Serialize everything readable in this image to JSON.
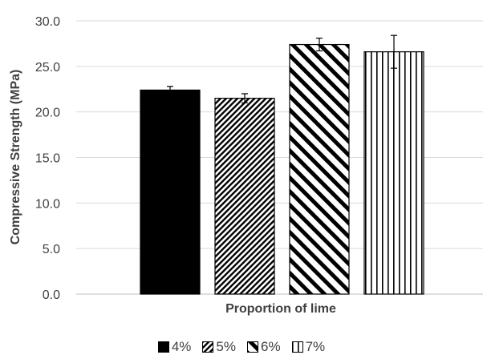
{
  "chart_data": {
    "type": "bar",
    "title": "",
    "xlabel": "Proportion of lime",
    "ylabel": "Compressive Strength (MPa)",
    "ylim": [
      0,
      30
    ],
    "yticks": [
      "0.0",
      "5.0",
      "10.0",
      "15.0",
      "20.0",
      "25.0",
      "30.0"
    ],
    "grid": true,
    "legend_position": "bottom",
    "series": [
      {
        "name": "4%",
        "value": 22.4,
        "error": 0.4,
        "pattern": "solid"
      },
      {
        "name": "5%",
        "value": 21.5,
        "error": 0.5,
        "pattern": "diag-down-dense"
      },
      {
        "name": "6%",
        "value": 27.4,
        "error": 0.7,
        "pattern": "diag-up"
      },
      {
        "name": "7%",
        "value": 26.6,
        "error": 1.8,
        "pattern": "vertical"
      }
    ]
  }
}
